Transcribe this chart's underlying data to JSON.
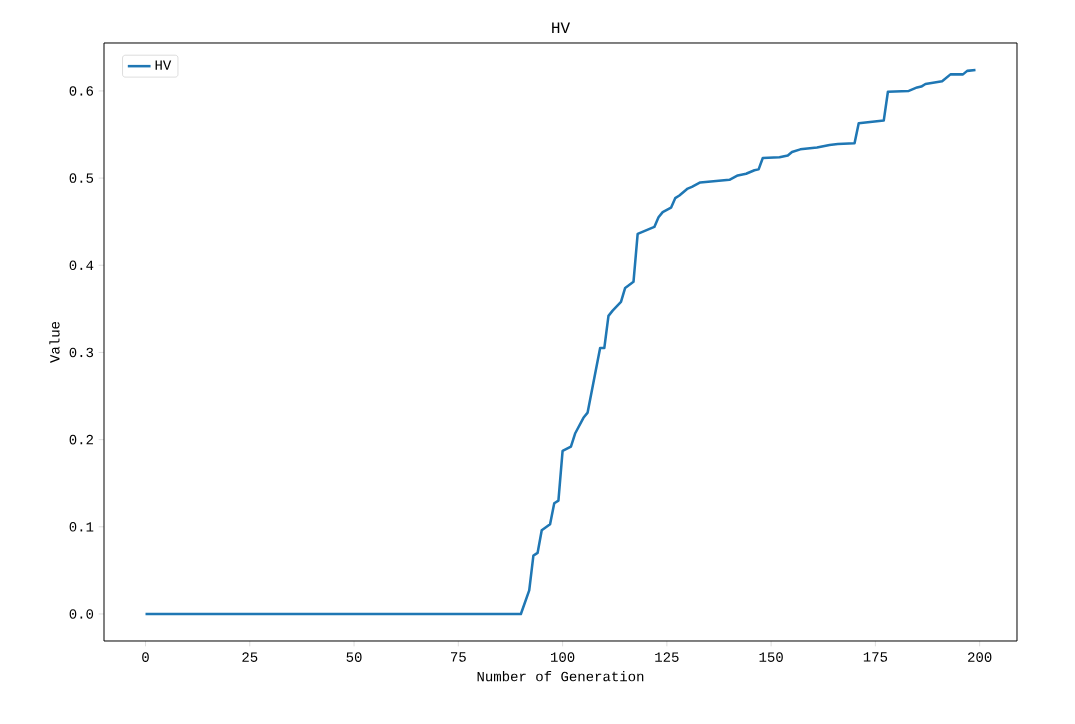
{
  "chart_data": {
    "type": "line",
    "title": "HV",
    "xlabel": "Number of Generation",
    "ylabel": "Value",
    "xlim": [
      -9.95,
      208.95
    ],
    "ylim": [
      -0.031,
      0.655
    ],
    "xticks": [
      0,
      25,
      50,
      75,
      100,
      125,
      150,
      175,
      200
    ],
    "yticks": [
      {
        "value": 0,
        "label": "0.0"
      },
      0.1,
      0.2,
      0.3,
      0.4,
      0.5,
      0.6
    ],
    "legend": "top left",
    "grid": false,
    "marker": "none",
    "line_style": "solid",
    "series": [
      {
        "name": "HV",
        "color": "#1f77b4",
        "x": [
          0,
          90,
          92,
          93,
          94,
          95,
          97,
          98,
          99,
          100,
          102,
          103,
          105,
          106,
          109,
          110,
          111,
          112,
          114,
          115,
          117,
          118,
          120,
          122,
          123,
          124,
          126,
          127,
          128,
          130,
          131,
          133,
          140,
          142,
          143,
          144,
          146,
          147,
          148,
          152,
          154,
          155,
          157,
          161,
          164,
          166,
          170,
          171,
          177,
          178,
          183,
          185,
          186,
          187,
          191,
          193,
          196,
          197,
          199
        ],
        "values": [
          0,
          0,
          0.027,
          0.067,
          0.07,
          0.096,
          0.103,
          0.127,
          0.13,
          0.187,
          0.192,
          0.207,
          0.225,
          0.231,
          0.305,
          0.305,
          0.342,
          0.348,
          0.358,
          0.374,
          0.381,
          0.436,
          0.44,
          0.444,
          0.455,
          0.461,
          0.466,
          0.477,
          0.48,
          0.488,
          0.49,
          0.495,
          0.498,
          0.503,
          0.504,
          0.505,
          0.509,
          0.51,
          0.523,
          0.524,
          0.526,
          0.53,
          0.533,
          0.535,
          0.538,
          0.539,
          0.54,
          0.563,
          0.566,
          0.599,
          0.6,
          0.604,
          0.605,
          0.608,
          0.611,
          0.619,
          0.619,
          0.623,
          0.624
        ]
      }
    ]
  }
}
